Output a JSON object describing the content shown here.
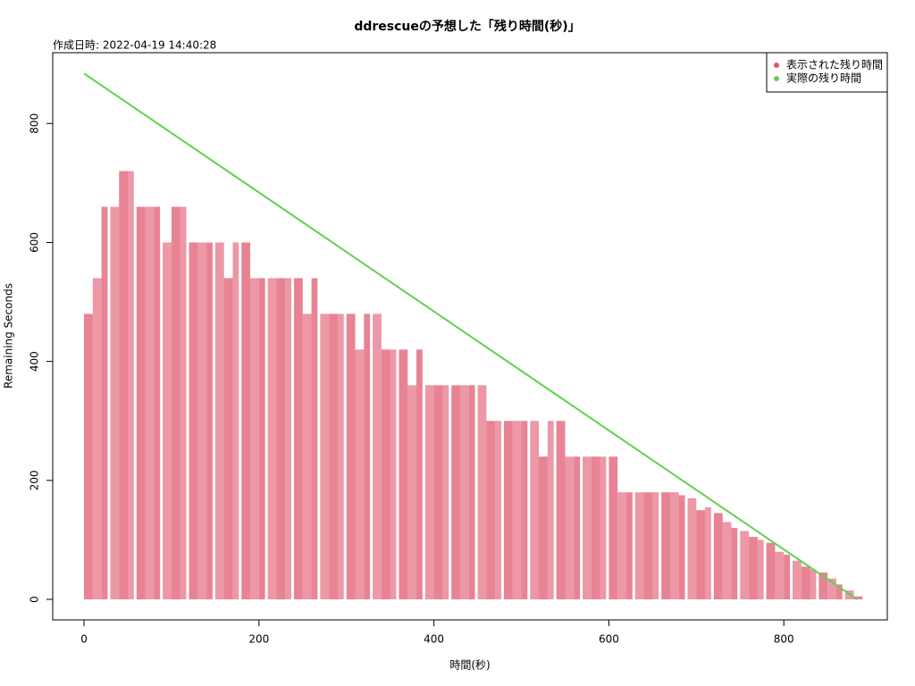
{
  "chart_data": {
    "type": "bar-line",
    "title": "ddrescueの予想した「残り時間(秒)」",
    "subtitle": "作成日時: 2022-04-19 14:40:28",
    "x_label": "時間(秒)",
    "y_label": "Remaining Seconds",
    "xlim": [
      -35.8,
      918.3
    ],
    "ylim": [
      -34.5,
      919
    ],
    "xticks": [
      0,
      200,
      400,
      600,
      800
    ],
    "yticks": [
      0,
      200,
      400,
      600,
      800
    ],
    "legend_position": "top-right",
    "series": [
      {
        "name": "表示された残り時間",
        "color": "#df536b",
        "mark": "bar",
        "x": [
          0,
          10,
          20,
          30,
          40,
          50,
          60,
          70,
          80,
          90,
          100,
          110,
          120,
          130,
          140,
          150,
          160,
          170,
          180,
          190,
          200,
          210,
          220,
          230,
          240,
          250,
          260,
          270,
          280,
          290,
          300,
          310,
          320,
          330,
          340,
          350,
          360,
          370,
          380,
          390,
          400,
          410,
          420,
          430,
          440,
          450,
          460,
          470,
          480,
          490,
          500,
          510,
          520,
          530,
          540,
          550,
          560,
          570,
          580,
          590,
          600,
          610,
          620,
          630,
          640,
          650,
          660,
          670,
          680,
          690,
          700,
          710,
          720,
          730,
          740,
          750,
          760,
          770,
          780,
          790,
          800,
          810,
          820,
          830,
          840,
          850,
          860,
          870,
          880
        ],
        "values": [
          480,
          540,
          660,
          660,
          720,
          720,
          660,
          660,
          660,
          600,
          660,
          660,
          600,
          600,
          600,
          600,
          540,
          600,
          600,
          540,
          540,
          540,
          540,
          540,
          540,
          480,
          540,
          480,
          480,
          480,
          480,
          420,
          480,
          480,
          420,
          420,
          420,
          360,
          420,
          360,
          360,
          360,
          360,
          360,
          360,
          360,
          300,
          300,
          300,
          300,
          300,
          300,
          240,
          300,
          300,
          240,
          240,
          240,
          240,
          240,
          240,
          180,
          180,
          180,
          180,
          180,
          180,
          180,
          175,
          170,
          150,
          155,
          145,
          130,
          120,
          115,
          105,
          100,
          95,
          80,
          75,
          65,
          55,
          50,
          45,
          35,
          25,
          15,
          5
        ]
      },
      {
        "name": "実際の残り時間",
        "color": "#61d04f",
        "mark": "line",
        "x": [
          0,
          884
        ],
        "values": [
          884,
          0
        ]
      }
    ]
  }
}
